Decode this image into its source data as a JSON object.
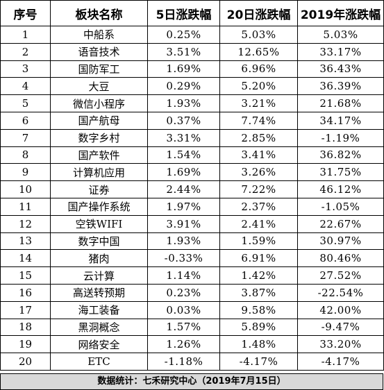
{
  "table": {
    "headers": [
      "序号",
      "板块名称",
      "5日涨跌幅",
      "20日涨跌幅",
      "2019年涨跌幅"
    ],
    "rows": [
      [
        "1",
        "中船系",
        "0.25%",
        "5.03%",
        "5.03%"
      ],
      [
        "2",
        "语音技术",
        "3.51%",
        "12.65%",
        "33.17%"
      ],
      [
        "3",
        "国防军工",
        "1.69%",
        "6.96%",
        "36.43%"
      ],
      [
        "4",
        "大豆",
        "0.29%",
        "5.20%",
        "36.39%"
      ],
      [
        "5",
        "微信小程序",
        "1.93%",
        "3.21%",
        "21.68%"
      ],
      [
        "6",
        "国产航母",
        "0.37%",
        "7.74%",
        "34.17%"
      ],
      [
        "7",
        "数字乡村",
        "3.31%",
        "2.85%",
        "-1.19%"
      ],
      [
        "8",
        "国产软件",
        "1.54%",
        "3.41%",
        "36.82%"
      ],
      [
        "9",
        "计算机应用",
        "1.69%",
        "3.26%",
        "31.75%"
      ],
      [
        "10",
        "证券",
        "2.44%",
        "7.22%",
        "46.12%"
      ],
      [
        "11",
        "国产操作系统",
        "1.97%",
        "2.37%",
        "-1.05%"
      ],
      [
        "12",
        "空铁WIFI",
        "3.91%",
        "2.41%",
        "22.67%"
      ],
      [
        "13",
        "数字中国",
        "1.93%",
        "1.59%",
        "30.97%"
      ],
      [
        "14",
        "猪肉",
        "-0.33%",
        "6.91%",
        "80.46%"
      ],
      [
        "15",
        "云计算",
        "1.14%",
        "1.42%",
        "27.52%"
      ],
      [
        "16",
        "高送转预期",
        "0.23%",
        "3.87%",
        "-22.54%"
      ],
      [
        "17",
        "海工装备",
        "0.03%",
        "9.58%",
        "42.00%"
      ],
      [
        "18",
        "黑洞概念",
        "1.57%",
        "5.89%",
        "-9.47%"
      ],
      [
        "19",
        "网络安全",
        "1.26%",
        "1.48%",
        "33.20%"
      ],
      [
        "20",
        "ETC",
        "-1.18%",
        "-4.17%",
        "-4.17%"
      ]
    ]
  },
  "footer": {
    "text": "数据统计：七禾研究中心（2019年7月15日）"
  },
  "colors": {
    "border": "#000000",
    "footer_bg": "#d9d9d9"
  }
}
